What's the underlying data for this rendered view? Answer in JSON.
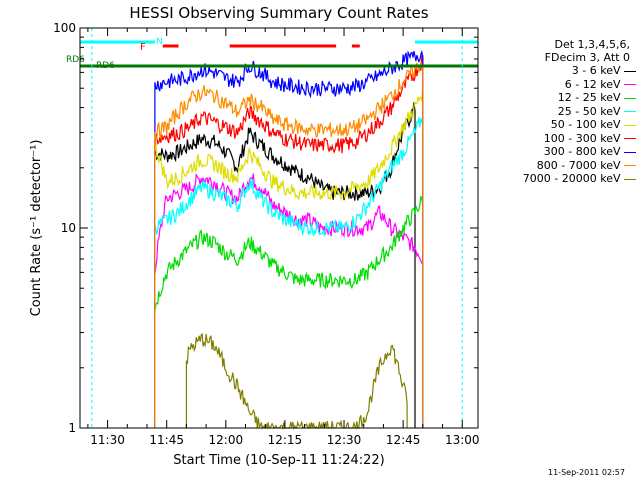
{
  "chart_data": {
    "type": "line",
    "title": "HESSI Observing Summary Count Rates",
    "xlabel": "Start Time (10-Sep-11 11:24:22)",
    "ylabel": "Count Rate (s⁻¹ detector⁻¹)",
    "yscale": "log",
    "ylim": [
      1,
      100
    ],
    "xlim_minutes_after_1130": [
      -7,
      94
    ],
    "x_ticks": [
      "11:30",
      "11:45",
      "12:00",
      "12:15",
      "12:30",
      "12:45",
      "13:00"
    ],
    "x_tick_minutes": [
      0,
      15,
      30,
      45,
      60,
      75,
      90
    ],
    "y_ticks": [
      "1",
      "10",
      "100"
    ],
    "legend_header": [
      "Det 1,3,4,5,6,",
      "FDecim 3, Att 0"
    ],
    "x_minutes": [
      12,
      15,
      18,
      21,
      24,
      27,
      30,
      33,
      36,
      39,
      42,
      45,
      48,
      51,
      54,
      57,
      60,
      63,
      66,
      69,
      72,
      75,
      78,
      80
    ],
    "series": [
      {
        "name": "3 - 6 keV",
        "color": "#000000",
        "start": 12,
        "end": 78,
        "values": [
          24,
          23,
          24,
          26,
          28,
          27,
          24,
          20,
          30,
          26,
          23,
          21,
          19,
          18,
          16,
          15,
          15,
          15,
          15,
          16,
          20,
          30,
          40,
          50
        ]
      },
      {
        "name": "6 - 12 keV",
        "color": "#ff00ff",
        "start": 12,
        "end": 80,
        "values": [
          6,
          14,
          15,
          16,
          18,
          17,
          15,
          14,
          18,
          16,
          13,
          12,
          11,
          11,
          10,
          10,
          10,
          10,
          10,
          12,
          10,
          9,
          8,
          7
        ]
      },
      {
        "name": "12 - 25 keV",
        "color": "#00dd00",
        "start": 12,
        "end": 80,
        "values": [
          4,
          6,
          7,
          8,
          9,
          8.5,
          7.5,
          7,
          8.5,
          7.5,
          6.5,
          6,
          5.5,
          5.5,
          5.5,
          5.5,
          5.5,
          5.5,
          6,
          7,
          8,
          10,
          12,
          14
        ]
      },
      {
        "name": "25 - 50 keV",
        "color": "#00ffff",
        "start": 12,
        "end": 80,
        "values": [
          10,
          11,
          12,
          14,
          16,
          15,
          14,
          13,
          17,
          14,
          12,
          11,
          10.5,
          10,
          10,
          10,
          10,
          11,
          13,
          16,
          20,
          24,
          30,
          36
        ]
      },
      {
        "name": "50 - 100 keV",
        "color": "#dddd00",
        "start": 12,
        "end": 80,
        "values": [
          26,
          17,
          18,
          20,
          22,
          21,
          19,
          18,
          24,
          20,
          17,
          16,
          15,
          15,
          15,
          15,
          15,
          16,
          17,
          20,
          25,
          32,
          40,
          48
        ]
      },
      {
        "name": "100 - 300 keV",
        "color": "#ff0000",
        "start": 12,
        "end": 80,
        "values": [
          28,
          29,
          30,
          32,
          36,
          34,
          32,
          30,
          38,
          34,
          30,
          28,
          27,
          26,
          26,
          26,
          26,
          27,
          30,
          34,
          40,
          50,
          60,
          70
        ]
      },
      {
        "name": "300 - 800 keV",
        "color": "#0000ff",
        "start": 12,
        "end": 80,
        "values": [
          52,
          54,
          55,
          58,
          62,
          60,
          56,
          54,
          65,
          60,
          54,
          52,
          51,
          50,
          50,
          50,
          50,
          51,
          54,
          58,
          63,
          68,
          72,
          76
        ]
      },
      {
        "name": "800 - 7000 keV",
        "color": "#ff8c00",
        "start": 12,
        "end": 80,
        "values": [
          30,
          32,
          38,
          44,
          48,
          46,
          42,
          38,
          44,
          40,
          35,
          33,
          32,
          31,
          31,
          31,
          31,
          32,
          35,
          40,
          46,
          54,
          62,
          68
        ]
      },
      {
        "name": "7000 - 20000 keV",
        "color": "#808000",
        "start": 20,
        "end": 76,
        "values": [
          1,
          1,
          1.5,
          2.5,
          2.8,
          2.6,
          2,
          1.6,
          1.2,
          1,
          1,
          1,
          1,
          1,
          1,
          1,
          1,
          1,
          1.2,
          2,
          2.6,
          1.6,
          1,
          1
        ]
      }
    ],
    "flags": [
      {
        "label": "N",
        "color": "#00ffff"
      },
      {
        "label": "F",
        "color": "#ff0000"
      },
      {
        "label": "RD6",
        "color": "#007700"
      }
    ],
    "legend_placement": "right",
    "grid": false
  },
  "footer": {
    "timestamp": "11-Sep-2011 02:57"
  }
}
